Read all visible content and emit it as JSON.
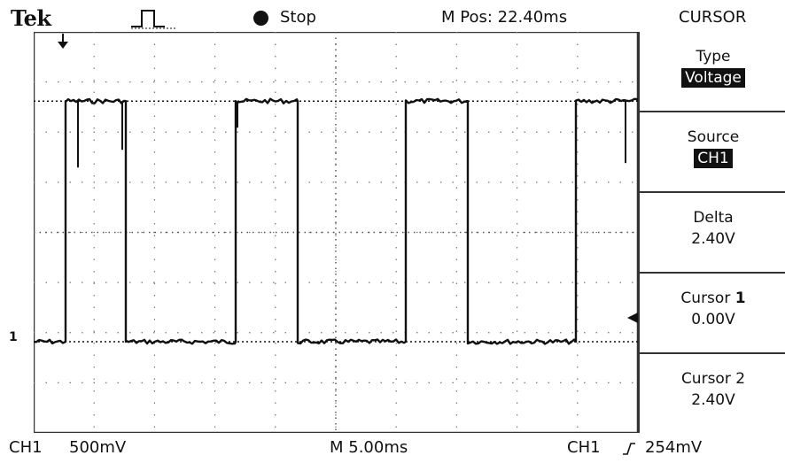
{
  "header": {
    "brand": "Tek",
    "acquisition_icon": "pulse-icon",
    "run_status": "Stop",
    "horizontal_position": "M Pos: 22.40ms",
    "menu_title": "CURSOR"
  },
  "channel_marker": "1",
  "side_menu": {
    "type": {
      "label": "Type",
      "value": "Voltage"
    },
    "source": {
      "label": "Source",
      "value": "CH1"
    },
    "delta": {
      "label": "Delta",
      "value": "2.40V"
    },
    "cursor1": {
      "label_prefix": "Cursor ",
      "label_num": "1",
      "value": "0.00V"
    },
    "cursor2": {
      "label": "Cursor 2",
      "value": "2.40V"
    }
  },
  "footer": {
    "channel": "CH1",
    "vertical_scale": "500mV",
    "timebase": "M 5.00ms",
    "trigger_source": "CH1",
    "trigger_slope_icon": "rising-edge-icon",
    "trigger_level": "254mV"
  },
  "waveform": {
    "type": "square",
    "high_level_V": 2.4,
    "low_level_V": 0.0,
    "cursor1_V": 0.0,
    "cursor2_V": 2.4,
    "color": "#111111"
  }
}
